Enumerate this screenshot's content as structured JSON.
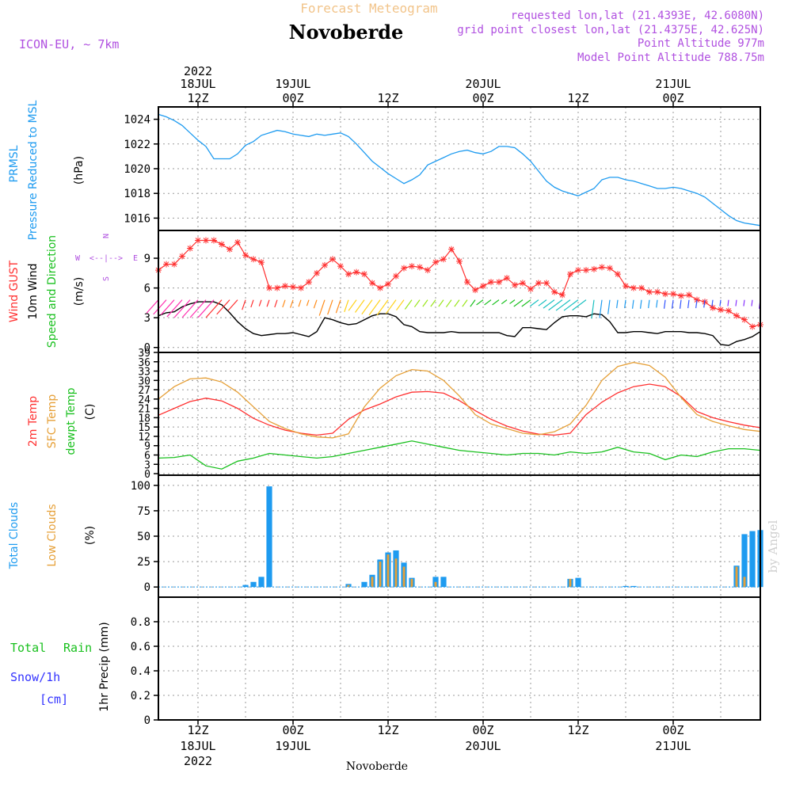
{
  "header": {
    "subtitle": "Forecast Meteogram",
    "title": "Novoberde",
    "model": "ICON-EU, ~ 7km",
    "info": [
      "requested lon,lat (21.4393E, 42.6080N)",
      "grid point closest lon,lat (21.4375E, 42.625N)",
      "Point Altitude 977m",
      "Model Point Altitude 788.75m"
    ],
    "footer_label": "Novoberde",
    "watermark": "by Angel"
  },
  "colors": {
    "pressure": "#1e9bf0",
    "gust": "#ff3030",
    "wind": "#000000",
    "direction_label": "#19c01e",
    "temp2m": "#ff3030",
    "sfc_temp": "#e6a038",
    "dewpt": "#19c01e",
    "total_clouds": "#1e9bf0",
    "low_clouds": "#e6a038",
    "rain": "#19c01e",
    "snow": "#3333ff",
    "info": "#b050e0",
    "subtitle": "#f2c48a"
  },
  "time_axis": {
    "top_labels": [
      {
        "line1": "2022",
        "line2": "18JUL",
        "line3": "12Z",
        "hour": 12
      },
      {
        "line1": "",
        "line2": "19JUL",
        "line3": "00Z",
        "hour": 24
      },
      {
        "line1": "",
        "line2": "",
        "line3": "12Z",
        "hour": 36
      },
      {
        "line1": "",
        "line2": "20JUL",
        "line3": "00Z",
        "hour": 48
      },
      {
        "line1": "",
        "line2": "",
        "line3": "12Z",
        "hour": 60
      },
      {
        "line1": "",
        "line2": "21JUL",
        "line3": "00Z",
        "hour": 72
      }
    ],
    "bottom_labels": [
      {
        "line1": "12Z",
        "line2": "18JUL",
        "line3": "2022",
        "hour": 12
      },
      {
        "line1": "00Z",
        "line2": "19JUL",
        "line3": "",
        "hour": 24
      },
      {
        "line1": "12Z",
        "line2": "",
        "line3": "",
        "hour": 36
      },
      {
        "line1": "00Z",
        "line2": "20JUL",
        "line3": "",
        "hour": 48
      },
      {
        "line1": "12Z",
        "line2": "",
        "line3": "",
        "hour": 60
      },
      {
        "line1": "00Z",
        "line2": "21JUL",
        "line3": "",
        "hour": 72
      }
    ]
  },
  "panel_labels": {
    "pressure": {
      "l1": "PRMSL",
      "l2": "Pressure Reduced to MSL",
      "unit": "(hPa)"
    },
    "wind": {
      "l1": "Wind GUST",
      "l2": "10m Wind",
      "l3": "Speed and Direction",
      "unit": "(m/s)",
      "compass": [
        "N",
        "S",
        "W",
        "E"
      ]
    },
    "temp": {
      "l1": "2m Temp",
      "l2": "SFC Temp",
      "l3": "dewpt Temp",
      "unit": "(C)"
    },
    "cloud": {
      "l1": "Total Clouds",
      "l2": "Low Clouds",
      "unit": "(%)"
    },
    "precip": {
      "l1": "Total",
      "l1b": "Rain",
      "l2": "Snow/1h",
      "l3": "[cm]",
      "unit": "1hr Precip (mm)"
    }
  },
  "chart_data": [
    {
      "id": "pressure",
      "type": "line",
      "ylabel": "(hPa)",
      "yticks": [
        1016,
        1018,
        1020,
        1022,
        1024
      ],
      "ylim": [
        1015,
        1025
      ],
      "xlim": [
        7,
        83
      ],
      "series": [
        {
          "name": "PRMSL",
          "x": [
            7,
            8,
            9,
            10,
            11,
            12,
            13,
            14,
            15,
            16,
            17,
            18,
            19,
            20,
            21,
            22,
            23,
            24,
            25,
            26,
            27,
            28,
            29,
            30,
            31,
            32,
            33,
            34,
            35,
            36,
            37,
            38,
            39,
            40,
            41,
            42,
            43,
            44,
            45,
            46,
            47,
            48,
            49,
            50,
            51,
            52,
            53,
            54,
            55,
            56,
            57,
            58,
            59,
            60,
            61,
            62,
            63,
            64,
            65,
            66,
            67,
            68,
            69,
            70,
            71,
            72,
            73,
            74,
            75,
            76,
            77,
            78,
            79,
            80,
            81,
            82,
            83
          ],
          "values": [
            1024.4,
            1024.2,
            1023.9,
            1023.5,
            1022.9,
            1022.3,
            1021.8,
            1020.8,
            1020.8,
            1020.8,
            1021.2,
            1021.9,
            1022.2,
            1022.7,
            1022.9,
            1023.1,
            1023.0,
            1022.8,
            1022.7,
            1022.6,
            1022.8,
            1022.7,
            1022.8,
            1022.9,
            1022.6,
            1022.0,
            1021.3,
            1020.6,
            1020.1,
            1019.6,
            1019.2,
            1018.8,
            1019.1,
            1019.5,
            1020.3,
            1020.6,
            1020.9,
            1021.2,
            1021.4,
            1021.5,
            1021.3,
            1021.2,
            1021.4,
            1021.8,
            1021.8,
            1021.7,
            1021.2,
            1020.6,
            1019.8,
            1019.0,
            1018.5,
            1018.2,
            1018.0,
            1017.8,
            1018.1,
            1018.4,
            1019.1,
            1019.3,
            1019.3,
            1019.1,
            1019.0,
            1018.8,
            1018.6,
            1018.4,
            1018.4,
            1018.5,
            1018.4,
            1018.2,
            1018.0,
            1017.7,
            1017.2,
            1016.7,
            1016.2,
            1015.8,
            1015.6,
            1015.5,
            1015.4
          ]
        }
      ]
    },
    {
      "id": "wind",
      "type": "line",
      "ylabel": "(m/s)",
      "yticks": [
        0,
        3,
        6,
        9
      ],
      "ylim": [
        -0.5,
        11.8
      ],
      "xlim": [
        7,
        83
      ],
      "series": [
        {
          "name": "Wind GUST",
          "x": [
            7,
            8,
            9,
            10,
            11,
            12,
            13,
            14,
            15,
            16,
            17,
            18,
            19,
            20,
            21,
            22,
            23,
            24,
            25,
            26,
            27,
            28,
            29,
            30,
            31,
            32,
            33,
            34,
            35,
            36,
            37,
            38,
            39,
            40,
            41,
            42,
            43,
            44,
            45,
            46,
            47,
            48,
            49,
            50,
            51,
            52,
            53,
            54,
            55,
            56,
            57,
            58,
            59,
            60,
            61,
            62,
            63,
            64,
            65,
            66,
            67,
            68,
            69,
            70,
            71,
            72,
            73,
            74,
            75,
            76,
            77,
            78,
            79,
            80,
            81,
            82,
            83
          ],
          "values": [
            7.8,
            8.4,
            8.4,
            9.2,
            10.0,
            10.8,
            10.8,
            10.8,
            10.4,
            9.9,
            10.6,
            9.3,
            8.9,
            8.6,
            6.0,
            6.0,
            6.2,
            6.1,
            6.0,
            6.6,
            7.5,
            8.3,
            8.9,
            8.2,
            7.4,
            7.6,
            7.4,
            6.5,
            6.0,
            6.4,
            7.2,
            8.0,
            8.2,
            8.1,
            7.8,
            8.6,
            8.9,
            9.9,
            8.7,
            6.6,
            5.8,
            6.2,
            6.6,
            6.6,
            7.0,
            6.3,
            6.5,
            5.9,
            6.5,
            6.5,
            5.6,
            5.3,
            7.4,
            7.8,
            7.8,
            7.9,
            8.1,
            8.0,
            7.4,
            6.2,
            6.0,
            6.0,
            5.6,
            5.6,
            5.4,
            5.4,
            5.2,
            5.3,
            4.8,
            4.6,
            4.0,
            3.8,
            3.7,
            3.2,
            2.8,
            2.1,
            2.3
          ]
        },
        {
          "name": "10m Wind",
          "x": [
            7,
            8,
            9,
            10,
            11,
            12,
            13,
            14,
            15,
            16,
            17,
            18,
            19,
            20,
            21,
            22,
            23,
            24,
            25,
            26,
            27,
            28,
            29,
            30,
            31,
            32,
            33,
            34,
            35,
            36,
            37,
            38,
            39,
            40,
            41,
            42,
            43,
            44,
            45,
            46,
            47,
            48,
            49,
            50,
            51,
            52,
            53,
            54,
            55,
            56,
            57,
            58,
            59,
            60,
            61,
            62,
            63,
            64,
            65,
            66,
            67,
            68,
            69,
            70,
            71,
            72,
            73,
            74,
            75,
            76,
            77,
            78,
            79,
            80,
            81,
            82,
            83
          ],
          "values": [
            3.2,
            3.5,
            3.6,
            4.1,
            4.4,
            4.6,
            4.6,
            4.6,
            4.3,
            3.5,
            2.6,
            1.9,
            1.4,
            1.2,
            1.3,
            1.4,
            1.4,
            1.5,
            1.3,
            1.1,
            1.6,
            3.0,
            2.8,
            2.5,
            2.3,
            2.4,
            2.8,
            3.2,
            3.4,
            3.4,
            3.1,
            2.3,
            2.1,
            1.6,
            1.5,
            1.5,
            1.5,
            1.6,
            1.5,
            1.5,
            1.5,
            1.5,
            1.5,
            1.5,
            1.2,
            1.1,
            2.0,
            2.0,
            1.9,
            1.8,
            2.5,
            3.1,
            3.2,
            3.2,
            3.1,
            3.4,
            3.3,
            2.6,
            1.5,
            1.5,
            1.6,
            1.6,
            1.5,
            1.4,
            1.6,
            1.6,
            1.6,
            1.5,
            1.5,
            1.4,
            1.2,
            0.3,
            0.2,
            0.6,
            0.8,
            1.1,
            1.6
          ]
        }
      ]
    },
    {
      "id": "temp",
      "type": "line",
      "ylabel": "(C)",
      "yticks": [
        0,
        3,
        6,
        9,
        12,
        15,
        18,
        21,
        24,
        27,
        30,
        33,
        36,
        39
      ],
      "ylim": [
        -0.5,
        39
      ],
      "xlim": [
        7,
        83
      ],
      "series": [
        {
          "name": "2m Temp",
          "x": [
            7,
            9,
            11,
            13,
            15,
            17,
            19,
            21,
            23,
            25,
            27,
            29,
            31,
            33,
            35,
            37,
            39,
            41,
            43,
            45,
            47,
            49,
            51,
            53,
            55,
            57,
            59,
            61,
            63,
            65,
            67,
            69,
            71,
            73,
            75,
            77,
            79,
            81,
            83
          ],
          "values": [
            18.8,
            21.0,
            23.2,
            24.3,
            23.4,
            21.0,
            17.8,
            15.6,
            14.0,
            13.0,
            12.4,
            13.0,
            17.5,
            20.5,
            22.4,
            24.7,
            26.2,
            26.4,
            25.9,
            23.5,
            20.3,
            17.5,
            15.3,
            13.7,
            12.7,
            12.4,
            13.0,
            19.0,
            23.0,
            26.0,
            28.0,
            28.8,
            28.0,
            24.8,
            20.0,
            18.0,
            16.7,
            15.6,
            14.8
          ]
        },
        {
          "name": "SFC Temp",
          "x": [
            7,
            9,
            11,
            13,
            15,
            17,
            19,
            21,
            23,
            25,
            27,
            29,
            31,
            33,
            35,
            37,
            39,
            41,
            43,
            45,
            47,
            49,
            51,
            53,
            55,
            57,
            59,
            61,
            63,
            65,
            67,
            69,
            71,
            73,
            75,
            77,
            79,
            81,
            83
          ],
          "values": [
            24.0,
            28.0,
            30.5,
            30.8,
            29.5,
            26.2,
            21.5,
            16.8,
            14.5,
            12.8,
            11.8,
            11.5,
            12.8,
            21.5,
            27.5,
            31.5,
            33.5,
            33.0,
            30.0,
            25.0,
            19.0,
            16.0,
            14.5,
            13.0,
            12.5,
            13.5,
            16.0,
            22.0,
            30.0,
            34.5,
            35.8,
            34.8,
            31.0,
            24.5,
            19.0,
            16.8,
            15.4,
            14.2,
            13.6
          ]
        },
        {
          "name": "dewpt Temp",
          "x": [
            7,
            9,
            11,
            13,
            15,
            17,
            19,
            21,
            23,
            25,
            27,
            29,
            31,
            33,
            35,
            37,
            39,
            41,
            43,
            45,
            47,
            49,
            51,
            53,
            55,
            57,
            59,
            61,
            63,
            65,
            67,
            69,
            71,
            73,
            75,
            77,
            79,
            81,
            83
          ],
          "values": [
            5.0,
            5.2,
            6.0,
            2.5,
            1.5,
            4.0,
            5.0,
            6.5,
            6.0,
            5.5,
            5.0,
            5.5,
            6.5,
            7.5,
            8.5,
            9.5,
            10.5,
            9.5,
            8.5,
            7.5,
            7.0,
            6.5,
            6.0,
            6.5,
            6.5,
            6.0,
            7.0,
            6.5,
            7.0,
            8.5,
            7.0,
            6.5,
            4.5,
            6.0,
            5.5,
            7.0,
            8.0,
            8.0,
            7.5
          ]
        }
      ]
    },
    {
      "id": "cloud",
      "type": "bar",
      "ylabel": "(%)",
      "yticks": [
        0,
        25,
        50,
        75,
        100
      ],
      "ylim": [
        -10,
        110
      ],
      "xlim": [
        7,
        83
      ],
      "series": [
        {
          "name": "Total Clouds",
          "x": [
            18,
            19,
            20,
            21,
            22,
            31,
            32,
            33,
            34,
            35,
            36,
            37,
            38,
            39,
            40,
            41,
            42,
            43,
            44,
            45,
            46,
            59,
            60,
            66,
            67,
            80,
            81,
            82,
            83
          ],
          "values": [
            2,
            5,
            10,
            99,
            0,
            3,
            0,
            5,
            12,
            27,
            34,
            36,
            24,
            9,
            0,
            0,
            10,
            10,
            0,
            0,
            0,
            8,
            9,
            1,
            1,
            21,
            52,
            55,
            56
          ]
        },
        {
          "name": "Low Clouds",
          "x": [
            31,
            32,
            33,
            34,
            35,
            36,
            37,
            38,
            39,
            40,
            41,
            42,
            43,
            44,
            45,
            46,
            59,
            60,
            80,
            81,
            82,
            83
          ],
          "values": [
            2,
            0,
            0,
            10,
            25,
            32,
            28,
            20,
            8,
            0,
            0,
            5,
            0,
            0,
            0,
            0,
            8,
            0,
            20,
            10,
            0,
            0
          ]
        }
      ]
    },
    {
      "id": "precip",
      "type": "bar",
      "ylabel": "1hr Precip (mm)",
      "yticks": [
        0,
        0.2,
        0.4,
        0.6,
        0.8
      ],
      "ylim": [
        0,
        1.0
      ],
      "xlim": [
        7,
        83
      ],
      "series": [
        {
          "name": "Total Rain",
          "x": [],
          "values": []
        }
      ]
    }
  ]
}
